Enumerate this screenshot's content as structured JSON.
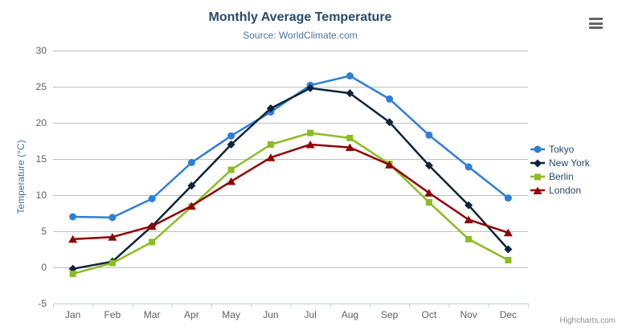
{
  "chart_data": {
    "type": "line",
    "title": "Monthly Average Temperature",
    "subtitle": "Source: WorldClimate.com",
    "categories": [
      "Jan",
      "Feb",
      "Mar",
      "Apr",
      "May",
      "Jun",
      "Jul",
      "Aug",
      "Sep",
      "Oct",
      "Nov",
      "Dec"
    ],
    "series": [
      {
        "name": "Tokyo",
        "color": "#2f7ed8",
        "marker": "circle",
        "values": [
          7.0,
          6.9,
          9.5,
          14.5,
          18.2,
          21.5,
          25.2,
          26.5,
          23.3,
          18.3,
          13.9,
          9.6
        ]
      },
      {
        "name": "New York",
        "color": "#0d233a",
        "marker": "diamond",
        "values": [
          -0.2,
          0.8,
          5.7,
          11.3,
          17.0,
          22.0,
          24.8,
          24.1,
          20.1,
          14.1,
          8.6,
          2.5
        ]
      },
      {
        "name": "Berlin",
        "color": "#8bbc21",
        "marker": "square",
        "values": [
          -0.9,
          0.6,
          3.5,
          8.4,
          13.5,
          17.0,
          18.6,
          17.9,
          14.3,
          9.0,
          3.9,
          1.0
        ]
      },
      {
        "name": "London",
        "color": "#910000",
        "marker": "triangle",
        "values": [
          3.9,
          4.2,
          5.7,
          8.5,
          11.9,
          15.2,
          17.0,
          16.6,
          14.2,
          10.3,
          6.6,
          4.8
        ]
      }
    ],
    "xlabel": "",
    "ylabel": "Temperature (°C)",
    "ylim": [
      -5,
      30
    ],
    "ytick_step": 5,
    "grid": true,
    "legend_position": "right"
  },
  "credits": {
    "label": "Highcharts.com"
  },
  "header": {
    "menu_icon": "hamburger-icon"
  },
  "theme": {
    "background": "#ffffff",
    "title_color": "#274b6d",
    "subtitle_color": "#4d759e",
    "grid_color": "#c0c0c0",
    "axis_line_color": "#c0d0e0",
    "axis_label_color": "#606060",
    "yaxis_title_color": "#4572a7",
    "legend_text_color": "#274b6d",
    "credit_color": "#909090",
    "menu_icon_color": "#666666"
  }
}
